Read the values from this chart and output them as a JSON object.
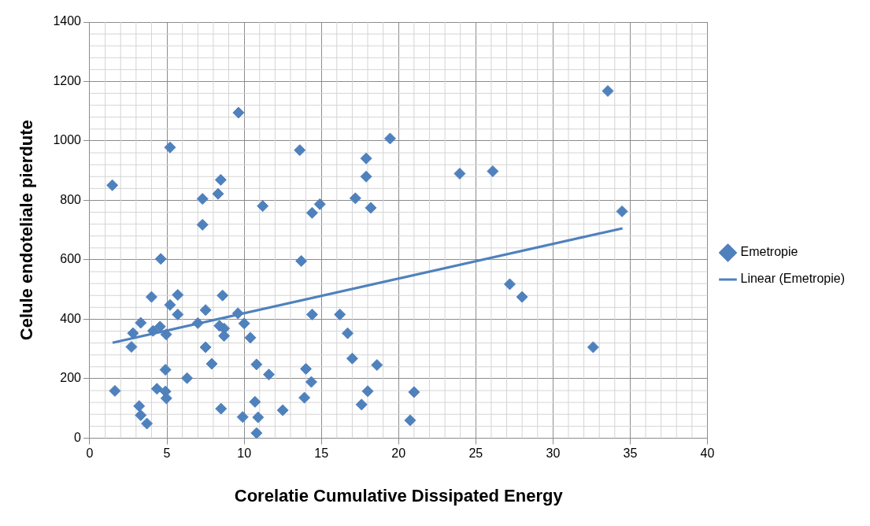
{
  "chart_data": {
    "type": "scatter",
    "xlabel": "Corelatie Cumulative Dissipated Energy",
    "ylabel": "Celule endoteliale pierdute",
    "xlim": [
      0,
      40
    ],
    "xticks": [
      0,
      5,
      10,
      15,
      20,
      25,
      30,
      35,
      40
    ],
    "ylim": [
      0,
      1400
    ],
    "yticks": [
      0,
      200,
      400,
      600,
      800,
      1000,
      1200,
      1400
    ],
    "grid": true,
    "legend": "right",
    "marker": "diamond",
    "series": [
      {
        "name": "Emetropie",
        "color": "#4f81bd",
        "x": [
          9.63,
          5.2,
          1.46,
          13.6,
          17.9,
          19.45,
          8.48,
          8.31,
          7.3,
          7.3,
          11.2,
          14.4,
          14.9,
          17.9,
          17.2,
          18.2,
          4.6,
          13.7,
          4.0,
          5.7,
          5.2,
          5.7,
          8.6,
          7.5,
          9.6,
          7.0,
          8.4,
          8.7,
          8.7,
          10.0,
          10.4,
          3.3,
          2.8,
          4.1,
          4.55,
          4.95,
          2.7,
          7.5,
          7.9,
          14.4,
          16.2,
          16.7,
          17.0,
          18.6,
          4.9,
          6.3,
          10.8,
          11.6,
          14.0,
          14.35,
          13.9,
          18.0,
          17.6,
          1.63,
          4.35,
          4.9,
          4.96,
          3.2,
          3.3,
          3.7,
          8.5,
          9.9,
          10.7,
          10.9,
          10.8,
          12.5,
          33.55,
          23.96,
          26.1,
          34.47,
          27.2,
          28.0,
          32.6,
          21.0,
          20.75
        ],
        "values": [
          1095,
          978,
          851,
          969,
          941,
          1008,
          869,
          822,
          805,
          718,
          781,
          758,
          787,
          880,
          807,
          775,
          603,
          596,
          475,
          482,
          448,
          416,
          480,
          431,
          420,
          387,
          378,
          369,
          344,
          386,
          338,
          388,
          353,
          361,
          375,
          349,
          307,
          306,
          250,
          416,
          416,
          353,
          268,
          246,
          230,
          202,
          248,
          214,
          233,
          189,
          136,
          158,
          113,
          159,
          166,
          157,
          134,
          108,
          77,
          49,
          99,
          71,
          122,
          70,
          17,
          94,
          1168,
          890,
          898,
          763,
          518,
          475,
          306,
          155,
          60
        ]
      },
      {
        "name": "Linear (Emetropie)",
        "type": "line",
        "marker": "none",
        "color": "#4f81bd",
        "x": [
          1.48,
          34.5
        ],
        "values": [
          321,
          706
        ]
      }
    ]
  }
}
